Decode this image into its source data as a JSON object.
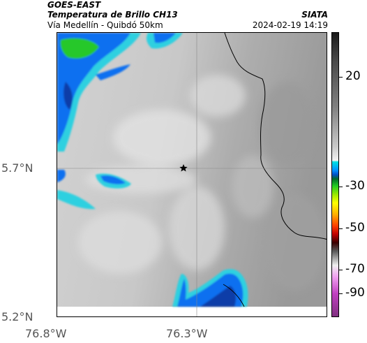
{
  "header": {
    "satellite": "GOES-EAST",
    "product": "Temperatura de Brillo CH13",
    "location": "Vía Medellín - Quibdó 50km",
    "organization": "SIATA",
    "datetime": "2024-02-19 14:19"
  },
  "map": {
    "lat_labels": [
      "5.7°N",
      "5.2°N"
    ],
    "lon_labels": [
      "76.8°W",
      "76.3°W"
    ],
    "marker": "star-marker"
  },
  "colorbar": {
    "labels": [
      "20",
      "-30",
      "-50",
      "-70",
      "-90"
    ]
  },
  "colors": {
    "cloud_cyan": "#2fd0e0",
    "cloud_blue": "#1070f0",
    "cloud_dark_blue": "#0a3ca8",
    "cloud_green": "#28c82a",
    "border_line": "#000000"
  }
}
